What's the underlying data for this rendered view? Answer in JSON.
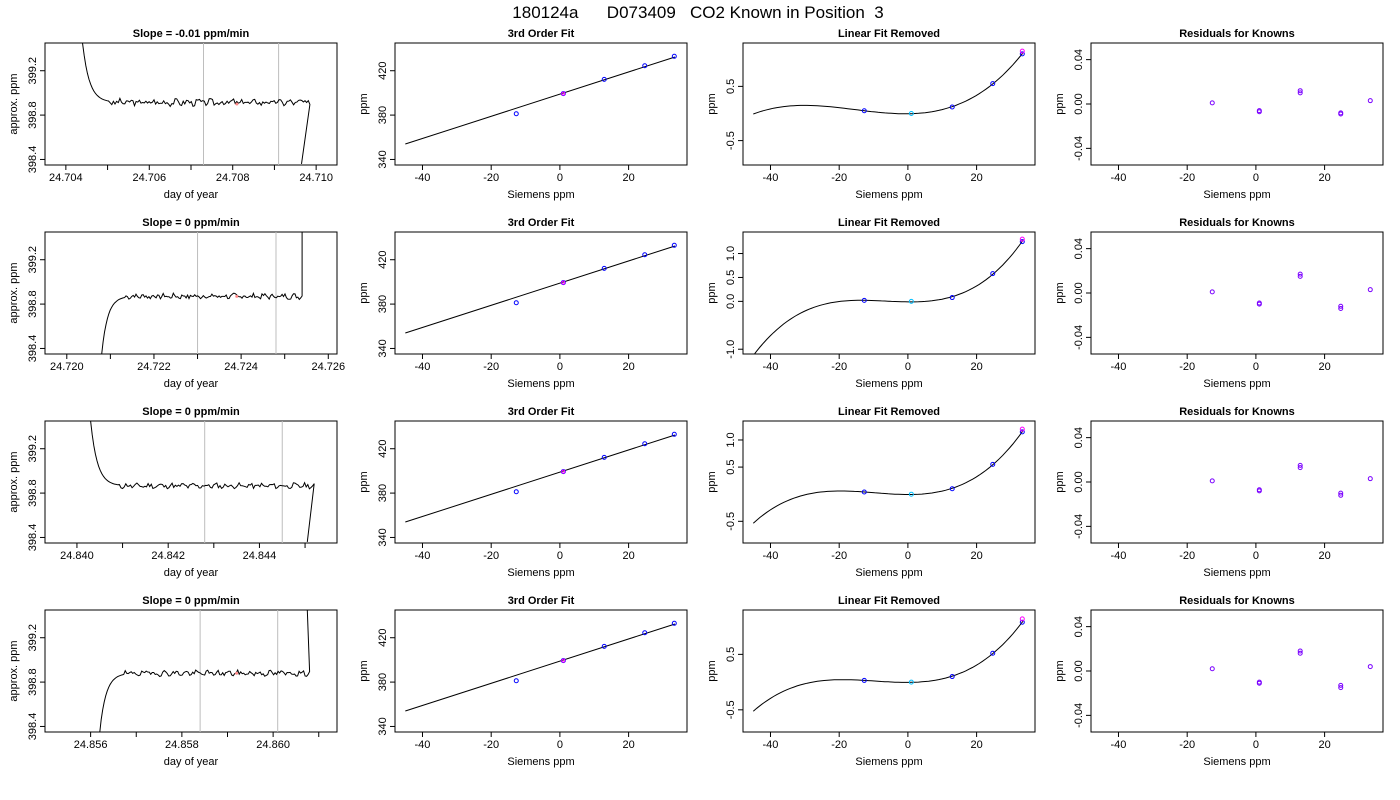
{
  "title": "180124a      D073409   CO2 Known in Position  3",
  "style": {
    "curve_color": "#000000",
    "vline_color": "#bdbdbd",
    "point_blue": "#0000ff",
    "point_red": "#ff0000",
    "point_magenta": "#ff00ff",
    "point_cyan": "#00bfff"
  },
  "chart_data": [
    {
      "type": "line",
      "row": 0,
      "col": 0,
      "title": "Slope =  -0.01  ppm/min",
      "xlabel": "day of year",
      "ylabel": "approx. ppm",
      "xlim": [
        24.7035,
        24.7105
      ],
      "ylim": [
        398.35,
        399.45
      ],
      "xticks": [
        24.704,
        24.706,
        24.708,
        24.71
      ],
      "xtick_labels": [
        "24.704",
        "24.706",
        "24.708",
        "24.710"
      ],
      "yticks": [
        398.4,
        398.8,
        399.2
      ],
      "ytick_labels": [
        "398.4",
        "398.8",
        "399.2"
      ],
      "vlines": [
        24.7073,
        24.7091
      ],
      "trace": {
        "x0": 24.7044,
        "x1": 24.70985,
        "rise_dir": -1,
        "level": 398.915,
        "amp": 0.025,
        "cut_x": 24.70965,
        "cut_y": 398.36,
        "top_x": 24.7047,
        "top_y": 399.45,
        "seed": 3
      },
      "markers": [
        {
          "x": 24.7081,
          "y": 398.9,
          "color": "#ff8888"
        }
      ]
    },
    {
      "type": "scatter",
      "row": 0,
      "col": 1,
      "title": "3rd Order Fit",
      "xlabel": "Siemens ppm",
      "ylabel": "ppm",
      "xlim": [
        -48,
        37
      ],
      "ylim": [
        335,
        445
      ],
      "xticks": [
        -40,
        -20,
        0,
        20
      ],
      "xtick_labels": [
        "-40",
        "-20",
        "0",
        "20"
      ],
      "yticks": [
        340,
        380,
        420
      ],
      "ytick_labels": [
        "340",
        "380",
        "420"
      ],
      "fit": {
        "x0": -45,
        "x1": 33.5,
        "a": 398.9,
        "b": 1.0
      },
      "points": {
        "x": [
          -12.7,
          1.0,
          12.9,
          24.7,
          33.3
        ],
        "y": [
          381.2,
          399.4,
          412.2,
          424.5,
          433.0
        ]
      }
    },
    {
      "type": "scatter",
      "row": 0,
      "col": 2,
      "title": "Linear Fit Removed",
      "xlabel": "Siemens ppm",
      "ylabel": "ppm",
      "xlim": [
        -48,
        37
      ],
      "ylim": [
        -0.95,
        1.3
      ],
      "xticks": [
        -40,
        -20,
        0,
        20
      ],
      "xtick_labels": [
        "-40",
        "-20",
        "0",
        "20"
      ],
      "yticks": [
        -0.5,
        0.5
      ],
      "ytick_labels": [
        "-0.5",
        "0.5"
      ],
      "fit": {
        "x0": -45,
        "x1": 33.5,
        "p": [
          0.0,
          0.0,
          0.0,
          0.0
        ]
      },
      "points": {
        "x": [
          -12.7,
          1.0,
          12.9,
          24.7,
          33.3
        ],
        "y": [
          0.05,
          0.0,
          0.12,
          0.55,
          1.1
        ]
      },
      "points2": {
        "x": [
          33.3
        ],
        "y": [
          1.15
        ]
      }
    },
    {
      "type": "scatter",
      "row": 0,
      "col": 3,
      "title": "Residuals for Knowns",
      "xlabel": "Siemens ppm",
      "ylabel": "ppm",
      "xlim": [
        -48,
        37
      ],
      "ylim": [
        -0.055,
        0.055
      ],
      "xticks": [
        -40,
        -20,
        0,
        20
      ],
      "xtick_labels": [
        "-40",
        "-20",
        "0",
        "20"
      ],
      "yticks": [
        -0.04,
        0.0,
        0.04
      ],
      "ytick_labels": [
        "-0.04",
        "0.00",
        "0.04"
      ],
      "points": {
        "x": [
          -12.7,
          1.0,
          1.0,
          12.9,
          12.9,
          24.7,
          24.7,
          33.3
        ],
        "y": [
          0.001,
          -0.006,
          -0.007,
          0.01,
          0.012,
          -0.008,
          -0.009,
          0.003
        ]
      }
    },
    {
      "type": "line",
      "row": 1,
      "col": 0,
      "title": "Slope =  0  ppm/min",
      "xlabel": "day of year",
      "ylabel": "approx. ppm",
      "xlim": [
        24.7195,
        24.7262
      ],
      "ylim": [
        398.35,
        399.45
      ],
      "xticks": [
        24.72,
        24.722,
        24.724,
        24.726
      ],
      "xtick_labels": [
        "24.720",
        "24.722",
        "24.724",
        "24.726"
      ],
      "yticks": [
        398.4,
        398.8,
        399.2
      ],
      "ytick_labels": [
        "398.4",
        "398.8",
        "399.2"
      ],
      "vlines": [
        24.723,
        24.7248
      ],
      "trace": {
        "x0": 24.7208,
        "x1": 24.7254,
        "rise_dir": 1,
        "level": 398.87,
        "amp": 0.02,
        "cut_x": 24.7254,
        "cut_y": 399.45,
        "top_x": 24.72085,
        "top_y": 398.35,
        "seed": 7
      },
      "markers": [
        {
          "x": 24.7239,
          "y": 398.87,
          "color": "#ff8888"
        }
      ]
    },
    {
      "type": "scatter",
      "row": 1,
      "col": 1,
      "title": "3rd Order Fit",
      "xlabel": "Siemens ppm",
      "ylabel": "ppm",
      "xlim": [
        -48,
        37
      ],
      "ylim": [
        335,
        445
      ],
      "xticks": [
        -40,
        -20,
        0,
        20
      ],
      "xtick_labels": [
        "-40",
        "-20",
        "0",
        "20"
      ],
      "yticks": [
        340,
        380,
        420
      ],
      "ytick_labels": [
        "340",
        "380",
        "420"
      ],
      "fit": {
        "x0": -45,
        "x1": 33.5,
        "a": 398.9,
        "b": 1.0
      },
      "points": {
        "x": [
          -12.7,
          1.0,
          12.9,
          24.7,
          33.3
        ],
        "y": [
          381.2,
          399.4,
          412.2,
          424.5,
          433.0
        ]
      }
    },
    {
      "type": "scatter",
      "row": 1,
      "col": 2,
      "title": "Linear Fit Removed",
      "xlabel": "Siemens ppm",
      "ylabel": "ppm",
      "xlim": [
        -48,
        37
      ],
      "ylim": [
        -1.1,
        1.45
      ],
      "xticks": [
        -40,
        -20,
        0,
        20
      ],
      "xtick_labels": [
        "-40",
        "-20",
        "0",
        "20"
      ],
      "yticks": [
        -1.0,
        0.0,
        0.5,
        1.0
      ],
      "ytick_labels": [
        "-1.0",
        "0.0",
        "0.5",
        "1.0"
      ],
      "fit": {
        "x0": -45,
        "x1": 33.5,
        "p": [
          0.0,
          0.0,
          0.0,
          0.0
        ]
      },
      "points": {
        "x": [
          -12.7,
          1.0,
          12.9,
          24.7,
          33.3
        ],
        "y": [
          0.02,
          0.0,
          0.08,
          0.58,
          1.25
        ]
      },
      "points2": {
        "x": [
          33.3
        ],
        "y": [
          1.3
        ]
      }
    },
    {
      "type": "scatter",
      "row": 1,
      "col": 3,
      "title": "Residuals for Knowns",
      "xlabel": "Siemens ppm",
      "ylabel": "ppm",
      "xlim": [
        -48,
        37
      ],
      "ylim": [
        -0.055,
        0.055
      ],
      "xticks": [
        -40,
        -20,
        0,
        20
      ],
      "xtick_labels": [
        "-40",
        "-20",
        "0",
        "20"
      ],
      "yticks": [
        -0.04,
        0.0,
        0.04
      ],
      "ytick_labels": [
        "-0.04",
        "0.00",
        "0.04"
      ],
      "points": {
        "x": [
          -12.7,
          1.0,
          1.0,
          12.9,
          12.9,
          24.7,
          24.7,
          33.3
        ],
        "y": [
          0.001,
          -0.009,
          -0.01,
          0.015,
          0.017,
          -0.012,
          -0.014,
          0.003
        ]
      }
    },
    {
      "type": "line",
      "row": 2,
      "col": 0,
      "title": "Slope =  0  ppm/min",
      "xlabel": "day of year",
      "ylabel": "approx. ppm",
      "xlim": [
        24.8393,
        24.8457
      ],
      "ylim": [
        398.35,
        399.45
      ],
      "xticks": [
        24.84,
        24.842,
        24.844
      ],
      "xtick_labels": [
        "24.840",
        "24.842",
        "24.844"
      ],
      "yticks": [
        398.4,
        398.8,
        399.2
      ],
      "ytick_labels": [
        "398.4",
        "398.8",
        "399.2"
      ],
      "vlines": [
        24.8428,
        24.8445
      ],
      "trace": {
        "x0": 24.8403,
        "x1": 24.8452,
        "rise_dir": -1,
        "level": 398.865,
        "amp": 0.02,
        "cut_x": 24.84505,
        "cut_y": 398.36,
        "top_x": 24.84052,
        "top_y": 399.45,
        "seed": 11
      },
      "markers": []
    },
    {
      "type": "scatter",
      "row": 2,
      "col": 1,
      "title": "3rd Order Fit",
      "xlabel": "Siemens ppm",
      "ylabel": "ppm",
      "xlim": [
        -48,
        37
      ],
      "ylim": [
        335,
        445
      ],
      "xticks": [
        -40,
        -20,
        0,
        20
      ],
      "xtick_labels": [
        "-40",
        "-20",
        "0",
        "20"
      ],
      "yticks": [
        340,
        380,
        420
      ],
      "ytick_labels": [
        "340",
        "380",
        "420"
      ],
      "fit": {
        "x0": -45,
        "x1": 33.5,
        "a": 398.9,
        "b": 1.0
      },
      "points": {
        "x": [
          -12.7,
          1.0,
          12.9,
          24.7,
          33.3
        ],
        "y": [
          381.2,
          399.4,
          412.2,
          424.5,
          433.0
        ]
      }
    },
    {
      "type": "scatter",
      "row": 2,
      "col": 2,
      "title": "Linear Fit Removed",
      "xlabel": "Siemens ppm",
      "ylabel": "ppm",
      "xlim": [
        -48,
        37
      ],
      "ylim": [
        -0.9,
        1.35
      ],
      "xticks": [
        -40,
        -20,
        0,
        20
      ],
      "xtick_labels": [
        "-40",
        "-20",
        "0",
        "20"
      ],
      "yticks": [
        -0.5,
        0.5,
        1.0
      ],
      "ytick_labels": [
        "-0.5",
        "0.5",
        "1.0"
      ],
      "fit": {
        "x0": -45,
        "x1": 33.5,
        "p": [
          0.0,
          0.0,
          0.0,
          0.0
        ]
      },
      "points": {
        "x": [
          -12.7,
          1.0,
          12.9,
          24.7,
          33.3
        ],
        "y": [
          0.04,
          0.0,
          0.1,
          0.55,
          1.15
        ]
      },
      "points2": {
        "x": [
          33.3
        ],
        "y": [
          1.2
        ]
      }
    },
    {
      "type": "scatter",
      "row": 2,
      "col": 3,
      "title": "Residuals for Knowns",
      "xlabel": "Siemens ppm",
      "ylabel": "ppm",
      "xlim": [
        -48,
        37
      ],
      "ylim": [
        -0.055,
        0.055
      ],
      "xticks": [
        -40,
        -20,
        0,
        20
      ],
      "xtick_labels": [
        "-40",
        "-20",
        "0",
        "20"
      ],
      "yticks": [
        -0.04,
        0.0,
        0.04
      ],
      "ytick_labels": [
        "-0.04",
        "0.00",
        "0.04"
      ],
      "points": {
        "x": [
          -12.7,
          1.0,
          1.0,
          12.9,
          12.9,
          24.7,
          24.7,
          33.3
        ],
        "y": [
          0.001,
          -0.007,
          -0.008,
          0.013,
          0.015,
          -0.01,
          -0.012,
          0.003
        ]
      }
    },
    {
      "type": "line",
      "row": 3,
      "col": 0,
      "title": "Slope =  0  ppm/min",
      "xlabel": "day of year",
      "ylabel": "approx. ppm",
      "xlim": [
        24.855,
        24.8614
      ],
      "ylim": [
        398.35,
        399.45
      ],
      "xticks": [
        24.856,
        24.858,
        24.86
      ],
      "xtick_labels": [
        "24.856",
        "24.858",
        "24.860"
      ],
      "yticks": [
        398.4,
        398.8,
        399.2
      ],
      "ytick_labels": [
        "398.4",
        "398.8",
        "399.2"
      ],
      "vlines": [
        24.8584,
        24.8601
      ],
      "trace": {
        "x0": 24.8562,
        "x1": 24.8608,
        "rise_dir": 1,
        "level": 398.88,
        "amp": 0.02,
        "cut_x": 24.86075,
        "cut_y": 399.45,
        "top_x": 24.85625,
        "top_y": 398.35,
        "seed": 19
      },
      "markers": [
        {
          "x": 24.8592,
          "y": 398.88,
          "color": "#ff8888"
        }
      ]
    },
    {
      "type": "scatter",
      "row": 3,
      "col": 1,
      "title": "3rd Order Fit",
      "xlabel": "Siemens ppm",
      "ylabel": "ppm",
      "xlim": [
        -48,
        37
      ],
      "ylim": [
        335,
        445
      ],
      "xticks": [
        -40,
        -20,
        0,
        20
      ],
      "xtick_labels": [
        "-40",
        "-20",
        "0",
        "20"
      ],
      "yticks": [
        340,
        380,
        420
      ],
      "ytick_labels": [
        "340",
        "380",
        "420"
      ],
      "fit": {
        "x0": -45,
        "x1": 33.5,
        "a": 398.9,
        "b": 1.0
      },
      "points": {
        "x": [
          -12.7,
          1.0,
          12.9,
          24.7,
          33.3
        ],
        "y": [
          381.2,
          399.4,
          412.2,
          424.5,
          433.0
        ]
      }
    },
    {
      "type": "scatter",
      "row": 3,
      "col": 2,
      "title": "Linear Fit Removed",
      "xlabel": "Siemens ppm",
      "ylabel": "ppm",
      "xlim": [
        -48,
        37
      ],
      "ylim": [
        -0.9,
        1.3
      ],
      "xticks": [
        -40,
        -20,
        0,
        20
      ],
      "xtick_labels": [
        "-40",
        "-20",
        "0",
        "20"
      ],
      "yticks": [
        -0.5,
        0.5
      ],
      "ytick_labels": [
        "-0.5",
        "0.5"
      ],
      "fit": {
        "x0": -45,
        "x1": 33.5,
        "p": [
          0.0,
          0.0,
          0.0,
          0.0
        ]
      },
      "points": {
        "x": [
          -12.7,
          1.0,
          12.9,
          24.7,
          33.3
        ],
        "y": [
          0.03,
          0.0,
          0.1,
          0.52,
          1.08
        ]
      },
      "points2": {
        "x": [
          33.3
        ],
        "y": [
          1.14
        ]
      }
    },
    {
      "type": "scatter",
      "row": 3,
      "col": 3,
      "title": "Residuals for Knowns",
      "xlabel": "Siemens ppm",
      "ylabel": "ppm",
      "xlim": [
        -48,
        37
      ],
      "ylim": [
        -0.055,
        0.055
      ],
      "xticks": [
        -40,
        -20,
        0,
        20
      ],
      "xtick_labels": [
        "-40",
        "-20",
        "0",
        "20"
      ],
      "yticks": [
        -0.04,
        0.0,
        0.04
      ],
      "ytick_labels": [
        "-0.04",
        "0.00",
        "0.04"
      ],
      "points": {
        "x": [
          -12.7,
          1.0,
          1.0,
          12.9,
          12.9,
          24.7,
          24.7,
          33.3
        ],
        "y": [
          0.002,
          -0.01,
          -0.011,
          0.016,
          0.018,
          -0.013,
          -0.015,
          0.004
        ]
      }
    }
  ]
}
